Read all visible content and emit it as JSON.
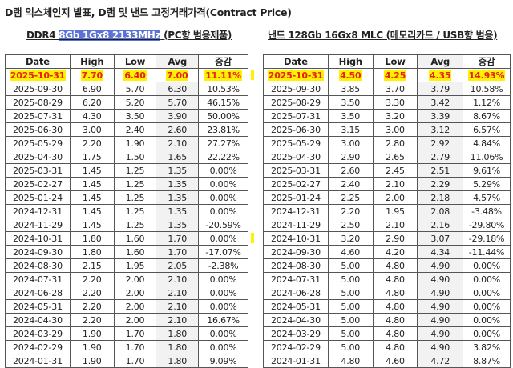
{
  "title": "D램 익스체인지 발표, D램 및 낸드 고정거래가격(Contract Price)",
  "left": {
    "subtitle_prefix": "DDR4 ",
    "subtitle_selected": "8Gb 1Gx8 2133MHz",
    "subtitle_suffix": " (PC향 범용제품)",
    "headers": [
      "Date",
      "High",
      "Low",
      "Avg",
      "증감"
    ],
    "rows": [
      [
        "2025-10-31",
        "7.70",
        "6.40",
        "7.00",
        "11.11%"
      ],
      [
        "2025-09-30",
        "6.90",
        "5.70",
        "6.30",
        "10.53%"
      ],
      [
        "2025-08-29",
        "6.20",
        "5.20",
        "5.70",
        "46.15%"
      ],
      [
        "2025-07-31",
        "4.30",
        "3.50",
        "3.90",
        "50.00%"
      ],
      [
        "2025-06-30",
        "3.00",
        "2.40",
        "2.60",
        "23.81%"
      ],
      [
        "2025-05-29",
        "2.20",
        "1.90",
        "2.10",
        "27.27%"
      ],
      [
        "2025-04-30",
        "1.75",
        "1.50",
        "1.65",
        "22.22%"
      ],
      [
        "2025-03-31",
        "1.45",
        "1.25",
        "1.35",
        "0.00%"
      ],
      [
        "2025-02-27",
        "1.45",
        "1.25",
        "1.35",
        "0.00%"
      ],
      [
        "2025-01-24",
        "1.45",
        "1.25",
        "1.35",
        "0.00%"
      ],
      [
        "2024-12-31",
        "1.45",
        "1.25",
        "1.35",
        "0.00%"
      ],
      [
        "2024-11-29",
        "1.45",
        "1.25",
        "1.35",
        "-20.59%"
      ],
      [
        "2024-10-31",
        "1.80",
        "1.60",
        "1.70",
        "0.00%"
      ],
      [
        "2024-09-30",
        "1.80",
        "1.60",
        "1.70",
        "-17.07%"
      ],
      [
        "2024-08-30",
        "2.15",
        "1.95",
        "2.05",
        "-2.38%"
      ],
      [
        "2024-07-31",
        "2.20",
        "2.00",
        "2.10",
        "0.00%"
      ],
      [
        "2024-06-28",
        "2.20",
        "2.00",
        "2.10",
        "0.00%"
      ],
      [
        "2024-05-31",
        "2.20",
        "2.00",
        "2.10",
        "0.00%"
      ],
      [
        "2024-04-30",
        "2.20",
        "2.00",
        "2.10",
        "16.67%"
      ],
      [
        "2024-03-29",
        "1.90",
        "1.70",
        "1.80",
        "0.00%"
      ],
      [
        "2024-02-29",
        "1.90",
        "1.70",
        "1.80",
        "0.00%"
      ],
      [
        "2024-01-31",
        "1.90",
        "1.70",
        "1.80",
        "9.09%"
      ]
    ]
  },
  "right": {
    "subtitle": "낸드 128Gb 16Gx8 MLC (메모리카드 / USB향 범용)",
    "headers": [
      "Date",
      "High",
      "Low",
      "Avg",
      "증감"
    ],
    "rows": [
      [
        "2025-10-31",
        "4.50",
        "4.25",
        "4.35",
        "14.93%"
      ],
      [
        "2025-09-30",
        "3.85",
        "3.70",
        "3.79",
        "10.58%"
      ],
      [
        "2025-08-29",
        "3.50",
        "3.30",
        "3.42",
        "1.12%"
      ],
      [
        "2025-07-31",
        "3.50",
        "3.20",
        "3.39",
        "8.67%"
      ],
      [
        "2025-06-30",
        "3.15",
        "3.00",
        "3.12",
        "6.57%"
      ],
      [
        "2025-05-29",
        "3.00",
        "2.80",
        "2.92",
        "4.84%"
      ],
      [
        "2025-04-30",
        "2.90",
        "2.65",
        "2.79",
        "11.06%"
      ],
      [
        "2025-03-31",
        "2.60",
        "2.45",
        "2.51",
        "9.61%"
      ],
      [
        "2025-02-27",
        "2.40",
        "2.10",
        "2.29",
        "5.29%"
      ],
      [
        "2025-01-24",
        "2.25",
        "2.00",
        "2.18",
        "4.57%"
      ],
      [
        "2024-12-31",
        "2.20",
        "1.95",
        "2.08",
        "-3.48%"
      ],
      [
        "2024-11-29",
        "2.50",
        "2.10",
        "2.16",
        "-29.80%"
      ],
      [
        "2024-10-31",
        "3.20",
        "2.90",
        "3.07",
        "-29.18%"
      ],
      [
        "2024-09-30",
        "4.60",
        "4.20",
        "4.34",
        "-11.44%"
      ],
      [
        "2024-08-30",
        "5.00",
        "4.80",
        "4.90",
        "0.00%"
      ],
      [
        "2024-07-31",
        "5.00",
        "4.80",
        "4.90",
        "0.00%"
      ],
      [
        "2024-06-28",
        "5.00",
        "4.80",
        "4.90",
        "0.00%"
      ],
      [
        "2024-05-31",
        "5.00",
        "4.80",
        "4.90",
        "0.00%"
      ],
      [
        "2024-04-30",
        "5.00",
        "4.80",
        "4.90",
        "0.00%"
      ],
      [
        "2024-03-29",
        "5.00",
        "4.80",
        "4.90",
        "0.00%"
      ],
      [
        "2024-02-29",
        "5.00",
        "4.80",
        "4.90",
        "3.82%"
      ],
      [
        "2024-01-31",
        "4.80",
        "4.60",
        "4.72",
        "8.87%"
      ]
    ]
  },
  "colors": {
    "highlight_text": "#e8201a",
    "highlight_bg": "#fff200",
    "selection": "#5b72d6",
    "avg_column_bg": "#f2f2f2"
  }
}
